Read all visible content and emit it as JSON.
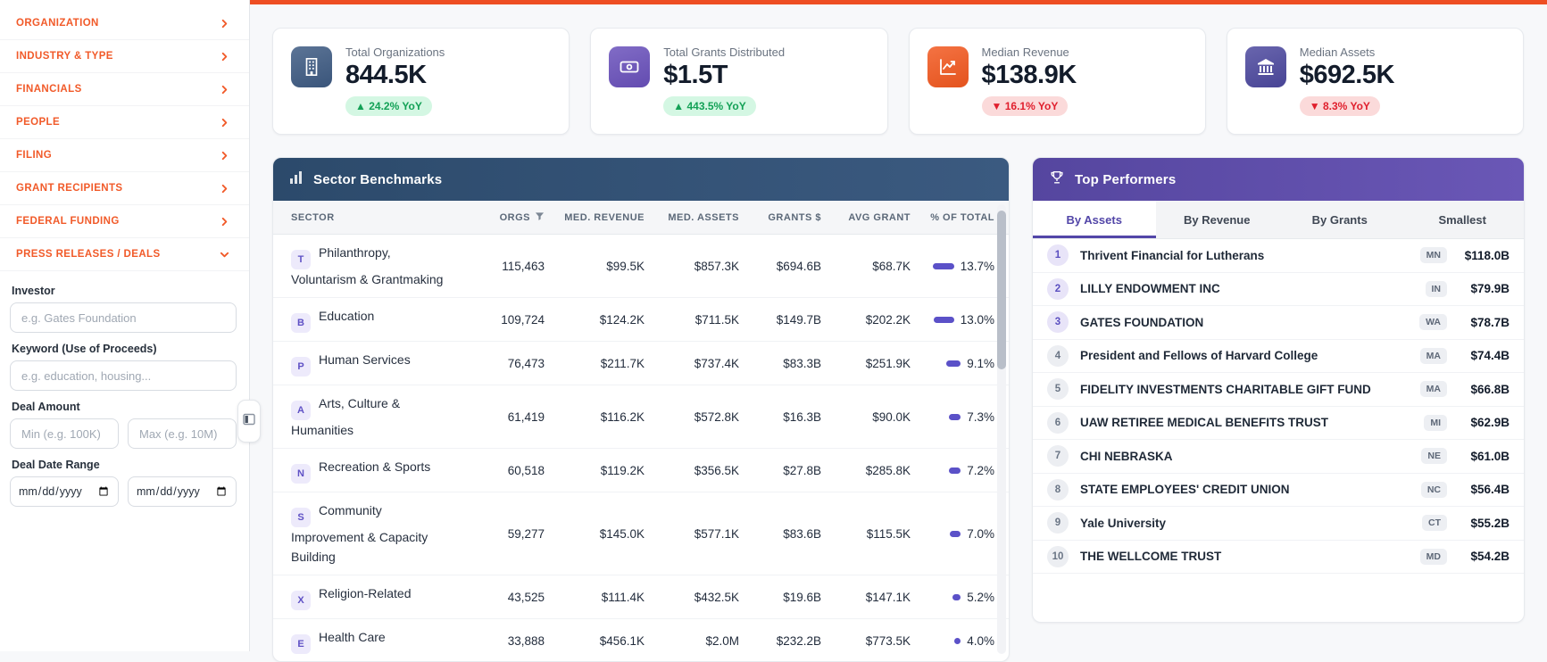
{
  "theme": {
    "accent_orange": "#ee4e23",
    "sidebar_link_color": "#f15a29",
    "sector_header_color": "#2e4d70",
    "performers_header_color": "#5a4aa6",
    "positive_color": "#13a156",
    "negative_color": "#e01f2d",
    "bar_color": "#5b51c8"
  },
  "sidebar": {
    "nav": [
      {
        "label": "ORGANIZATION",
        "expanded": false
      },
      {
        "label": "INDUSTRY & TYPE",
        "expanded": false
      },
      {
        "label": "FINANCIALS",
        "expanded": false
      },
      {
        "label": "PEOPLE",
        "expanded": false
      },
      {
        "label": "FILING",
        "expanded": false
      },
      {
        "label": "GRANT RECIPIENTS",
        "expanded": false
      },
      {
        "label": "FEDERAL FUNDING",
        "expanded": false
      },
      {
        "label": "PRESS RELEASES / DEALS",
        "expanded": true
      }
    ],
    "filters": {
      "investor": {
        "label": "Investor",
        "placeholder": "e.g. Gates Foundation",
        "value": ""
      },
      "keyword": {
        "label": "Keyword (Use of Proceeds)",
        "placeholder": "e.g. education, housing...",
        "value": ""
      },
      "deal_amount": {
        "label": "Deal Amount",
        "min_placeholder": "Min (e.g. 100K)",
        "max_placeholder": "Max (e.g. 10M)",
        "min_value": "",
        "max_value": ""
      },
      "deal_date": {
        "label": "Deal Date Range",
        "format": "mm/dd/yyyy",
        "start_value": "",
        "end_value": ""
      }
    }
  },
  "stat_cards": [
    {
      "label": "Total Organizations",
      "value": "844.5K",
      "arrow": "▲",
      "change": "24.2% YoY",
      "trend": "up",
      "icon": "building-icon",
      "icon_bg": "#3d5a82"
    },
    {
      "label": "Total Grants Distributed",
      "value": "$1.5T",
      "arrow": "▲",
      "change": "443.5% YoY",
      "trend": "up",
      "icon": "banknote-icon",
      "icon_bg": "#6950bb"
    },
    {
      "label": "Median Revenue",
      "value": "$138.9K",
      "arrow": "▼",
      "change": "16.1% YoY",
      "trend": "down",
      "icon": "trend-icon",
      "icon_bg": "#f2581f"
    },
    {
      "label": "Median Assets",
      "value": "$692.5K",
      "arrow": "▼",
      "change": "8.3% YoY",
      "trend": "down",
      "icon": "bank-icon",
      "icon_bg": "#4c489e"
    }
  ],
  "benchmarks": {
    "title": "Sector Benchmarks",
    "columns": [
      "SECTOR",
      "ORGS",
      "MED. REVENUE",
      "MED. ASSETS",
      "GRANTS $",
      "AVG GRANT",
      "% OF TOTAL"
    ],
    "sorted_by": "ORGS",
    "rows": [
      {
        "code": "T",
        "sector": "Philanthropy, Voluntarism & Grantmaking",
        "orgs": "115,463",
        "med_revenue": "$99.5K",
        "med_assets": "$857.3K",
        "grants": "$694.6B",
        "avg_grant": "$68.7K",
        "pct": "13.7%",
        "pct_value": 13.7
      },
      {
        "code": "B",
        "sector": "Education",
        "orgs": "109,724",
        "med_revenue": "$124.2K",
        "med_assets": "$711.5K",
        "grants": "$149.7B",
        "avg_grant": "$202.2K",
        "pct": "13.0%",
        "pct_value": 13.0
      },
      {
        "code": "P",
        "sector": "Human Services",
        "orgs": "76,473",
        "med_revenue": "$211.7K",
        "med_assets": "$737.4K",
        "grants": "$83.3B",
        "avg_grant": "$251.9K",
        "pct": "9.1%",
        "pct_value": 9.1
      },
      {
        "code": "A",
        "sector": "Arts, Culture & Humanities",
        "orgs": "61,419",
        "med_revenue": "$116.2K",
        "med_assets": "$572.8K",
        "grants": "$16.3B",
        "avg_grant": "$90.0K",
        "pct": "7.3%",
        "pct_value": 7.3
      },
      {
        "code": "N",
        "sector": "Recreation & Sports",
        "orgs": "60,518",
        "med_revenue": "$119.2K",
        "med_assets": "$356.5K",
        "grants": "$27.8B",
        "avg_grant": "$285.8K",
        "pct": "7.2%",
        "pct_value": 7.2
      },
      {
        "code": "S",
        "sector": "Community Improvement & Capacity Building",
        "orgs": "59,277",
        "med_revenue": "$145.0K",
        "med_assets": "$577.1K",
        "grants": "$83.6B",
        "avg_grant": "$115.5K",
        "pct": "7.0%",
        "pct_value": 7.0
      },
      {
        "code": "X",
        "sector": "Religion-Related",
        "orgs": "43,525",
        "med_revenue": "$111.4K",
        "med_assets": "$432.5K",
        "grants": "$19.6B",
        "avg_grant": "$147.1K",
        "pct": "5.2%",
        "pct_value": 5.2
      },
      {
        "code": "E",
        "sector": "Health Care",
        "orgs": "33,888",
        "med_revenue": "$456.1K",
        "med_assets": "$2.0M",
        "grants": "$232.2B",
        "avg_grant": "$773.5K",
        "pct": "4.0%",
        "pct_value": 4.0
      }
    ]
  },
  "top_performers": {
    "title": "Top Performers",
    "tabs": [
      "By Assets",
      "By Revenue",
      "By Grants",
      "Smallest"
    ],
    "active_tab": "By Assets",
    "rows": [
      {
        "rank": "1",
        "name": "Thrivent Financial for Lutherans",
        "state": "MN",
        "amount": "$118.0B"
      },
      {
        "rank": "2",
        "name": "LILLY ENDOWMENT INC",
        "state": "IN",
        "amount": "$79.9B"
      },
      {
        "rank": "3",
        "name": "GATES FOUNDATION",
        "state": "WA",
        "amount": "$78.7B"
      },
      {
        "rank": "4",
        "name": "President and Fellows of Harvard College",
        "state": "MA",
        "amount": "$74.4B"
      },
      {
        "rank": "5",
        "name": "FIDELITY INVESTMENTS CHARITABLE GIFT FUND",
        "state": "MA",
        "amount": "$66.8B"
      },
      {
        "rank": "6",
        "name": "UAW RETIREE MEDICAL BENEFITS TRUST",
        "state": "MI",
        "amount": "$62.9B"
      },
      {
        "rank": "7",
        "name": "CHI NEBRASKA",
        "state": "NE",
        "amount": "$61.0B"
      },
      {
        "rank": "8",
        "name": "STATE EMPLOYEES' CREDIT UNION",
        "state": "NC",
        "amount": "$56.4B"
      },
      {
        "rank": "9",
        "name": "Yale University",
        "state": "CT",
        "amount": "$55.2B"
      },
      {
        "rank": "10",
        "name": "THE WELLCOME TRUST",
        "state": "MD",
        "amount": "$54.2B"
      }
    ]
  }
}
